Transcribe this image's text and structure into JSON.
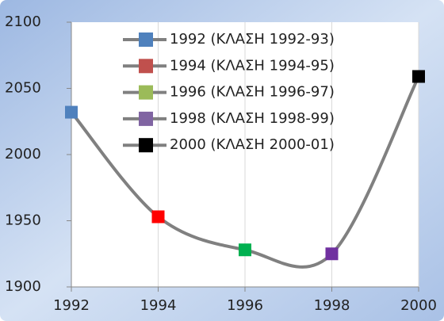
{
  "chart_data": {
    "type": "line",
    "x": [
      1992,
      1994,
      1996,
      1998,
      2000
    ],
    "values": [
      2032,
      1953,
      1928,
      1925,
      2059
    ],
    "line_color": "#808080",
    "point_colors": [
      "#4f81bd",
      "#ff0000",
      "#00b050",
      "#7030a0",
      "#000000"
    ],
    "legend": [
      "1992  (ΚΛΑΣΗ 1992-93)",
      "1994  (ΚΛΑΣΗ 1994-95)",
      "1996  (ΚΛΑΣΗ 1996-97)",
      "1998  (ΚΛΑΣΗ 1998-99)",
      "2000  (ΚΛΑΣΗ 2000-01)"
    ],
    "legend_colors": [
      "#4f81bd",
      "#c0504d",
      "#9bbb59",
      "#8064a2",
      "#000000"
    ],
    "xlim": [
      1992,
      2000
    ],
    "xticks": [
      1992,
      1994,
      1996,
      1998,
      2000
    ],
    "ylim": [
      1900,
      2100
    ],
    "yticks": [
      1900,
      1950,
      2000,
      2050,
      2100
    ],
    "grid": "x",
    "smooth": true
  }
}
